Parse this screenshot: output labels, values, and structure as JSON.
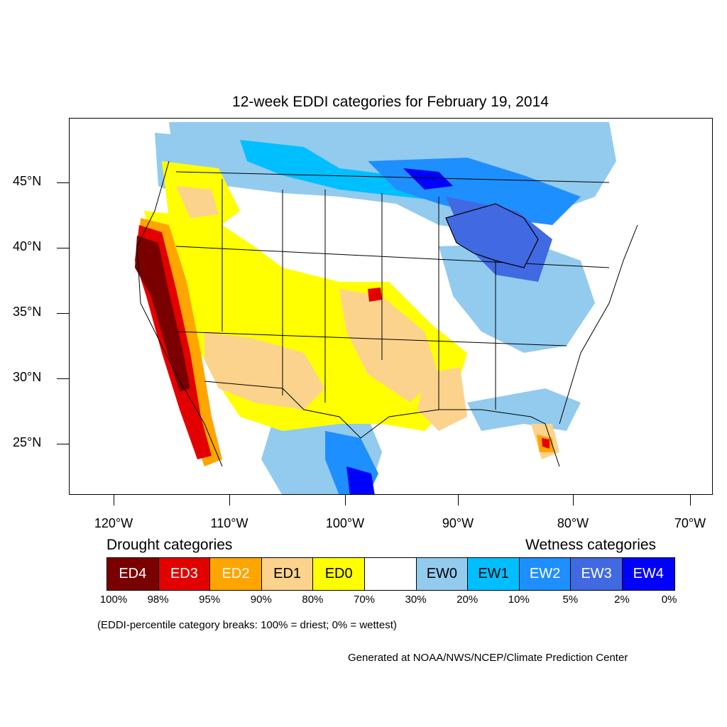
{
  "title": "12-week EDDI categories for February 19, 2014",
  "lat_labels": [
    "45°N",
    "40°N",
    "35°N",
    "30°N",
    "25°N"
  ],
  "lon_labels": [
    "120°W",
    "110°W",
    "100°W",
    "90°W",
    "80°W",
    "70°W"
  ],
  "legend": {
    "drought_heading": "Drought categories",
    "wetness_heading": "Wetness categories",
    "categories": [
      {
        "label": "ED4",
        "color": "#7a0000",
        "text_color": "#ffffff"
      },
      {
        "label": "ED3",
        "color": "#e30000",
        "text_color": "#ffffff"
      },
      {
        "label": "ED2",
        "color": "#ffa500",
        "text_color": "#ffffff"
      },
      {
        "label": "ED1",
        "color": "#fcd38c",
        "text_color": "#000000"
      },
      {
        "label": "ED0",
        "color": "#ffff00",
        "text_color": "#000000"
      },
      {
        "label": "",
        "color": "#ffffff",
        "text_color": "#000000"
      },
      {
        "label": "EW0",
        "color": "#92cbee",
        "text_color": "#000000"
      },
      {
        "label": "EW1",
        "color": "#00bfff",
        "text_color": "#000000"
      },
      {
        "label": "EW2",
        "color": "#1e8fff",
        "text_color": "#ffffff"
      },
      {
        "label": "EW3",
        "color": "#4169e1",
        "text_color": "#ffffff"
      },
      {
        "label": "EW4",
        "color": "#0000ff",
        "text_color": "#ffffff"
      }
    ],
    "percent_breaks": [
      "100%",
      "98%",
      "95%",
      "90%",
      "80%",
      "70%",
      "30%",
      "20%",
      "10%",
      "5%",
      "2%",
      "0%"
    ]
  },
  "note": "(EDDI-percentile category breaks: 100% = driest; 0% = wettest)",
  "credit": "Generated at NOAA/NWS/NCEP/Climate Prediction Center"
}
